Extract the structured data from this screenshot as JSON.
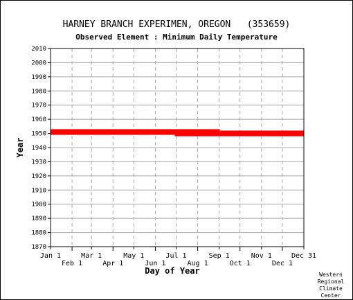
{
  "chart_data": {
    "type": "scatter",
    "title": "HARNEY BRANCH EXPERIMEN, OREGON   (353659)",
    "subtitle": "Observed Element : Minimum Daily Temperature",
    "xlabel": "Day of Year",
    "ylabel": "Year",
    "ylim": [
      1870,
      2010
    ],
    "xlim": [
      1,
      366
    ],
    "grid": true,
    "y_ticks": [
      1870,
      1880,
      1890,
      1900,
      1910,
      1920,
      1930,
      1940,
      1950,
      1960,
      1970,
      1980,
      1990,
      2000,
      2010
    ],
    "x_ticks_upper": [
      {
        "label": "Jan 1",
        "day": 1
      },
      {
        "label": "Mar 1",
        "day": 60
      },
      {
        "label": "May 1",
        "day": 121
      },
      {
        "label": "Jul 1",
        "day": 182
      },
      {
        "label": "Sep 1",
        "day": 244
      },
      {
        "label": "Nov 1",
        "day": 305
      },
      {
        "label": "Dec 31",
        "day": 366
      }
    ],
    "x_ticks_lower": [
      {
        "label": "Feb 1",
        "day": 32
      },
      {
        "label": "Apr 1",
        "day": 91
      },
      {
        "label": "Jun 1",
        "day": 152
      },
      {
        "label": "Aug 1",
        "day": 213
      },
      {
        "label": "Oct 1",
        "day": 274
      },
      {
        "label": "Dec 1",
        "day": 335
      }
    ],
    "series": [
      {
        "color": "#ff0000",
        "segments": [
          {
            "day_start": 1,
            "day_end": 180,
            "year_start": 1949,
            "year_end": 1953
          },
          {
            "day_start": 180,
            "day_end": 245,
            "year_start": 1948,
            "year_end": 1953
          },
          {
            "day_start": 245,
            "day_end": 366,
            "year_start": 1948,
            "year_end": 1952
          }
        ]
      }
    ]
  },
  "credit": [
    "Western",
    "Regional",
    "Climate",
    "Center"
  ]
}
